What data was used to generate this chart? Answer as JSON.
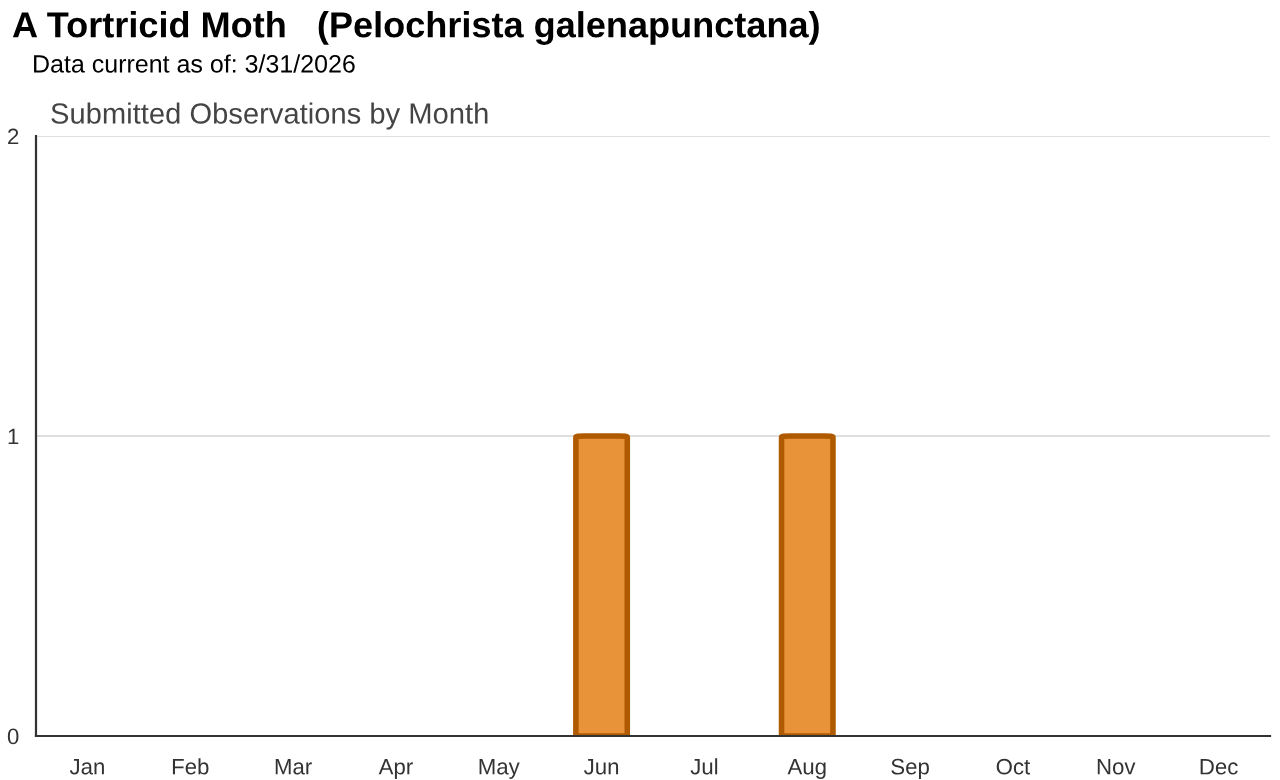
{
  "chart_data": {
    "type": "bar",
    "title": "A Tortricid Moth   (Pelochrista galenapunctana)",
    "subtitle": "Data current as of: 3/31/2026",
    "annotations": [
      "Submitted Observations by Month"
    ],
    "categories": [
      "Jan",
      "Feb",
      "Mar",
      "Apr",
      "May",
      "Jun",
      "Jul",
      "Aug",
      "Sep",
      "Oct",
      "Nov",
      "Dec"
    ],
    "values": [
      0,
      0,
      0,
      0,
      0,
      1,
      0,
      1,
      0,
      0,
      0,
      0
    ],
    "color": "#e8923a",
    "ylim": [
      0,
      2
    ],
    "yticks": [
      0,
      1,
      2
    ],
    "grid": "y",
    "legend": false
  }
}
